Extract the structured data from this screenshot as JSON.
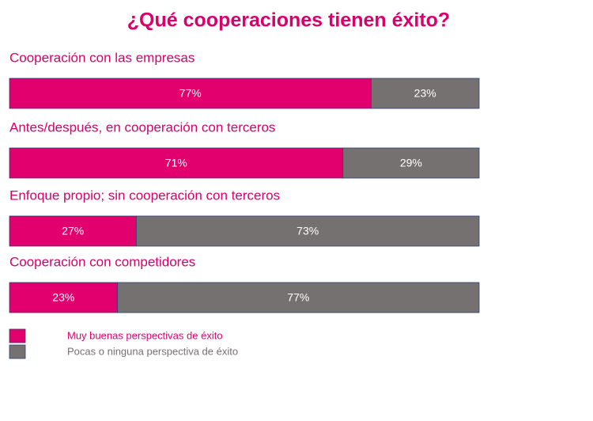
{
  "chart_data": {
    "type": "bar",
    "orientation": "horizontal",
    "stacked": true,
    "title": "¿Qué cooperaciones tienen éxito?",
    "categories": [
      "Cooperación con las empresas",
      "Antes/después, en cooperación con terceros",
      "Enfoque propio; sin cooperación con terceros",
      "Cooperación con competidores"
    ],
    "series": [
      {
        "name": "Muy buenas perspectivas de éxito",
        "color": "#e2006f",
        "values": [
          77,
          71,
          27,
          23
        ],
        "value_labels": [
          "77%",
          "71%",
          "27%",
          "23%"
        ]
      },
      {
        "name": "Pocas o ninguna perspectiva de éxito",
        "color": "#767171",
        "values": [
          23,
          29,
          73,
          77
        ],
        "value_labels": [
          "23%",
          "29%",
          "73%",
          "77%"
        ]
      }
    ]
  }
}
